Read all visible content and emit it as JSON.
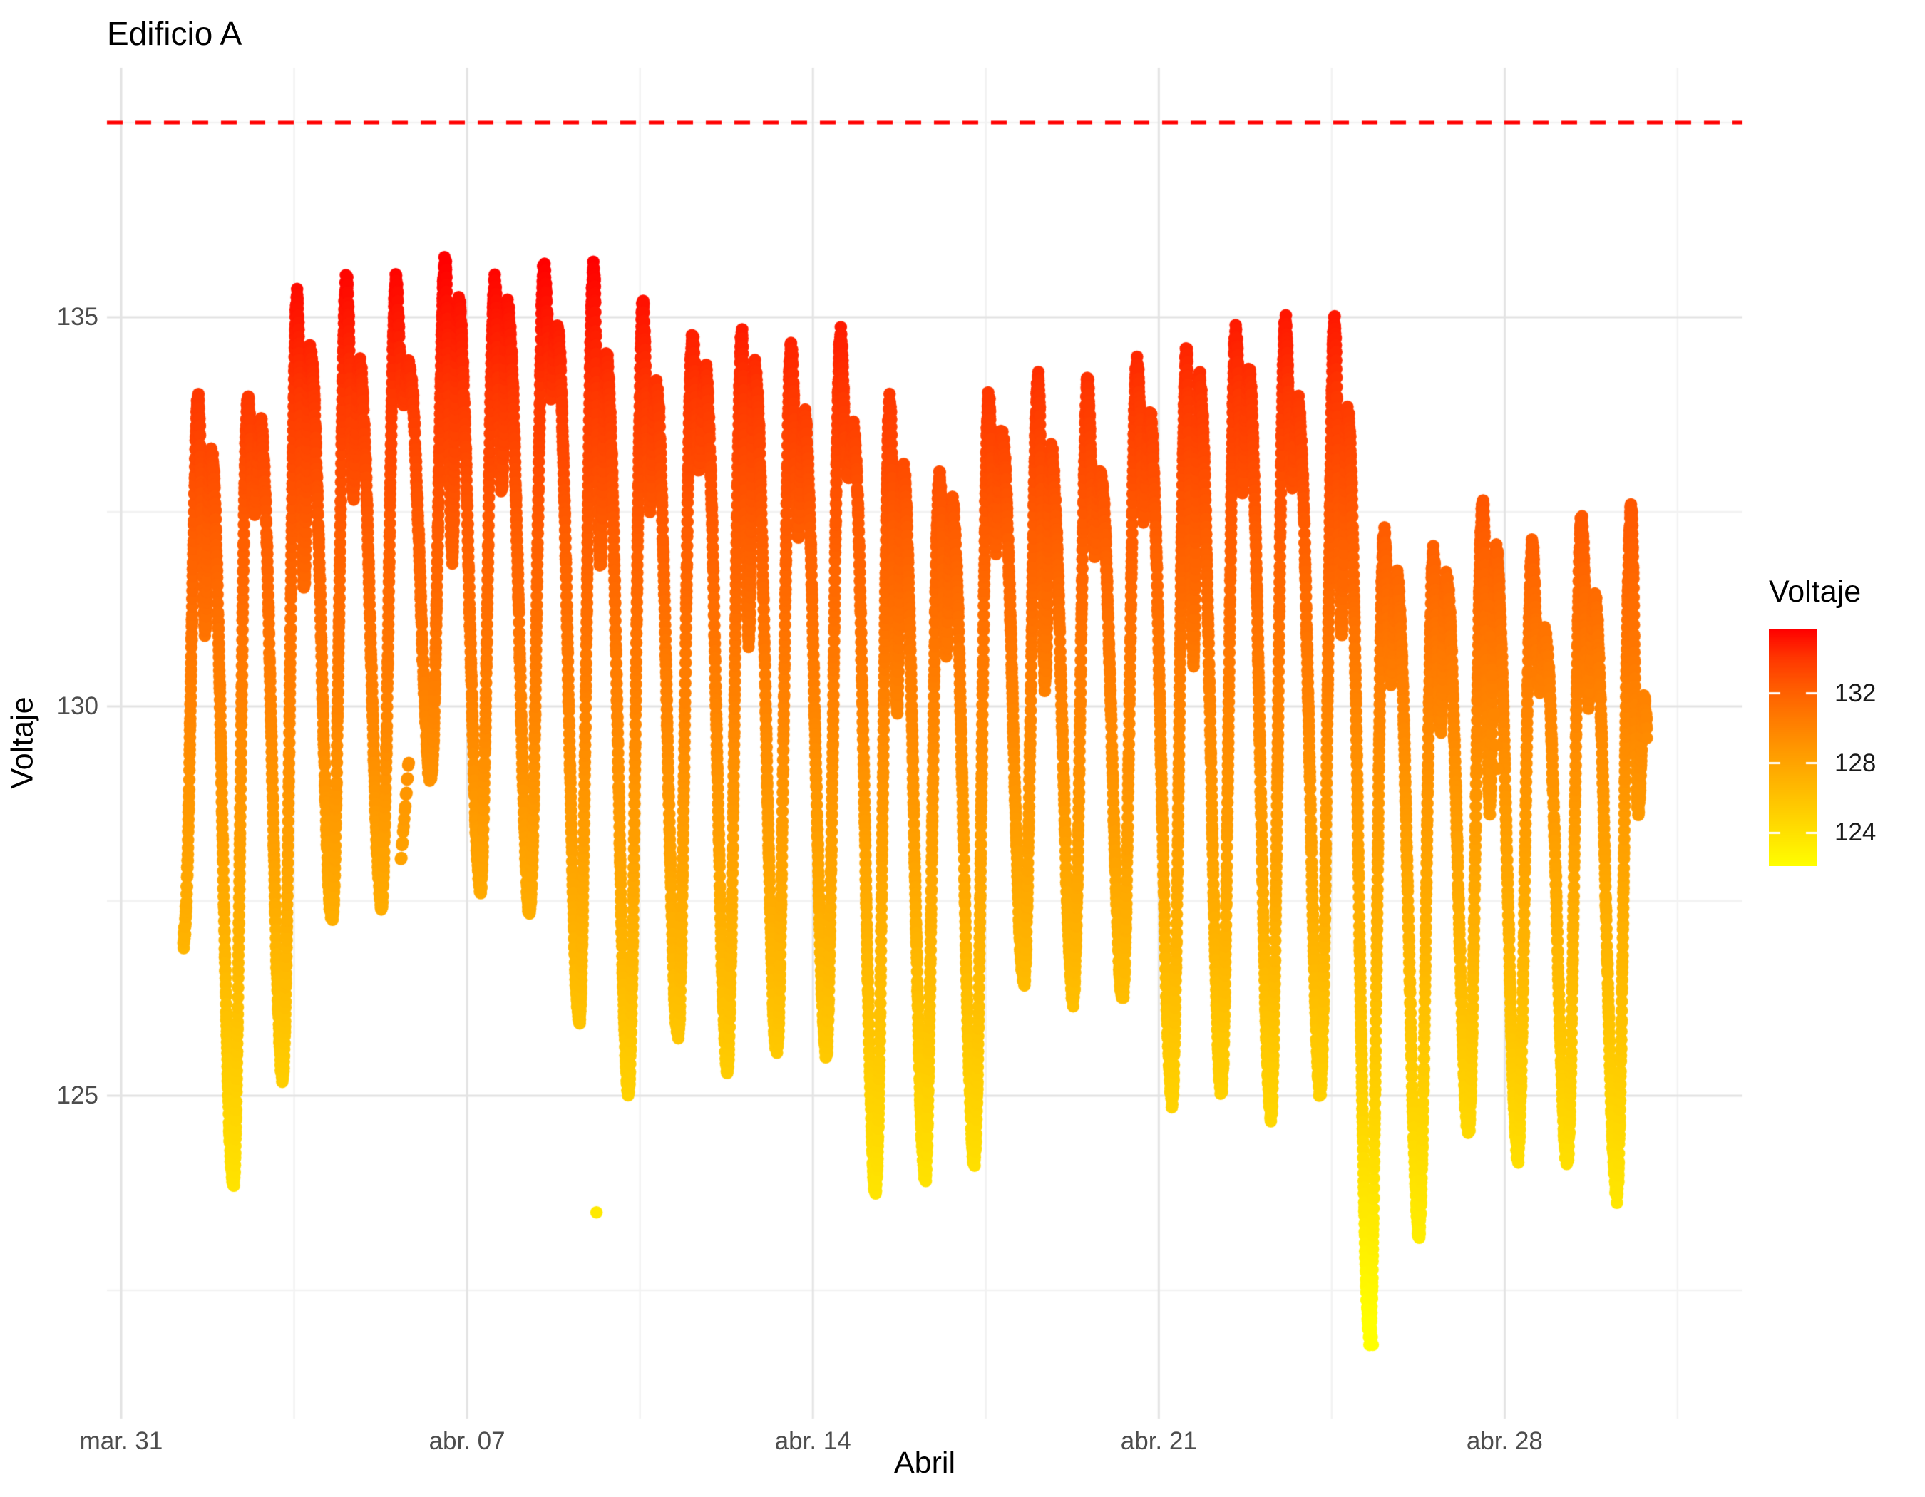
{
  "title": "Edificio A",
  "chart_data": {
    "type": "scatter",
    "title": "Edificio A",
    "xlabel": "Abril",
    "ylabel": "Voltaje",
    "x_axis": {
      "tick_labels": [
        "mar. 31",
        "abr. 07",
        "abr. 14",
        "abr. 21",
        "abr. 28"
      ],
      "tick_days": [
        0,
        7,
        14,
        21,
        28
      ],
      "minor_days": [
        3.5,
        10.5,
        17.5,
        24.5,
        31.5
      ],
      "note": "days measured after Mar 31; data runs Apr 1 - Apr 30"
    },
    "y_axis": {
      "tick_values": [
        135,
        130,
        125
      ],
      "minor_values": [
        137.5,
        132.5,
        127.5,
        122.5
      ],
      "domain": [
        120.9,
        138.2
      ]
    },
    "grid": {
      "major_color": "#E3E3E3",
      "minor_color": "#F2F2F2",
      "background": "#FFFFFF"
    },
    "threshold_line": {
      "value": 137.5,
      "color": "#FF0000",
      "style": "dashed"
    },
    "color_scale": {
      "legend_title": "Voltaje",
      "legend_ticks": [
        132,
        128,
        124
      ],
      "low_color": "#FFFF00",
      "high_color": "#FF0000",
      "domain_min": 122.1,
      "domain_max": 135.7
    },
    "pattern": {
      "description": "High-frequency voltage readings with a daily cycle: nightly minimum, midday maximum, afternoon notch, evening secondary peak",
      "sampling_start_day": 1.26,
      "sampling_end_day": 30.88,
      "phase_trough": 0.27,
      "phase_peak": 0.56,
      "phase_notch": 0.7,
      "phase_second_peak": 0.82
    },
    "daily": [
      {
        "date": 1,
        "day_max": 133.9,
        "morning_min": 127.0
      },
      {
        "date": 2,
        "day_max": 133.9,
        "morning_min": 123.9
      },
      {
        "date": 3,
        "day_max": 135.2,
        "morning_min": 125.3
      },
      {
        "date": 4,
        "day_max": 135.5,
        "morning_min": 127.3
      },
      {
        "date": 5,
        "day_max": 135.4,
        "morning_min": 127.5
      },
      {
        "date": 6,
        "day_max": 135.7,
        "morning_min": 129.1
      },
      {
        "date": 7,
        "day_max": 135.4,
        "morning_min": 127.7
      },
      {
        "date": 8,
        "day_max": 135.6,
        "morning_min": 127.4
      },
      {
        "date": 9,
        "day_max": 135.6,
        "morning_min": 126.0
      },
      {
        "date": 10,
        "day_max": 135.1,
        "morning_min": 125.1
      },
      {
        "date": 11,
        "day_max": 134.7,
        "morning_min": 125.8
      },
      {
        "date": 12,
        "day_max": 134.7,
        "morning_min": 125.4
      },
      {
        "date": 13,
        "day_max": 134.6,
        "morning_min": 125.6
      },
      {
        "date": 14,
        "day_max": 134.7,
        "morning_min": 125.6
      },
      {
        "date": 15,
        "day_max": 133.9,
        "morning_min": 123.8
      },
      {
        "date": 16,
        "day_max": 132.9,
        "morning_min": 124.0
      },
      {
        "date": 17,
        "day_max": 133.9,
        "morning_min": 124.2
      },
      {
        "date": 18,
        "day_max": 134.2,
        "morning_min": 126.5
      },
      {
        "date": 19,
        "day_max": 134.1,
        "morning_min": 126.3
      },
      {
        "date": 20,
        "day_max": 134.4,
        "morning_min": 126.3
      },
      {
        "date": 21,
        "day_max": 134.5,
        "morning_min": 125.0
      },
      {
        "date": 22,
        "day_max": 134.8,
        "morning_min": 125.1
      },
      {
        "date": 23,
        "day_max": 134.9,
        "morning_min": 124.8
      },
      {
        "date": 24,
        "day_max": 134.9,
        "morning_min": 125.1
      },
      {
        "date": 25,
        "day_max": 132.2,
        "morning_min": 121.9
      },
      {
        "date": 26,
        "day_max": 131.9,
        "morning_min": 123.3
      },
      {
        "date": 27,
        "day_max": 132.6,
        "morning_min": 124.6
      },
      {
        "date": 28,
        "day_max": 132.0,
        "morning_min": 124.3
      },
      {
        "date": 29,
        "day_max": 132.4,
        "morning_min": 124.2
      },
      {
        "date": 30,
        "day_max": 132.5,
        "morning_min": 123.8
      }
    ],
    "special_day_overrides": {
      "30": {
        "second_peak_value": 130.0
      }
    },
    "anomalies": {
      "isolated_points": [
        [
          9.62,
          123.5
        ],
        [
          25.3,
          122.1
        ],
        [
          25.31,
          121.9
        ],
        [
          25.33,
          121.8
        ],
        [
          27.66,
          131.3
        ],
        [
          27.7,
          130.9
        ],
        [
          27.74,
          130.4
        ],
        [
          27.78,
          129.9
        ],
        [
          27.82,
          129.5
        ],
        [
          27.86,
          129.2
        ]
      ],
      "detached_blob": {
        "day_from": 5.66,
        "day_to": 5.82,
        "v_from": 128.0,
        "v_to": 129.3
      },
      "gap": {
        "day_from": 5.6,
        "day_to": 5.84,
        "v_below": 129.6
      }
    }
  }
}
